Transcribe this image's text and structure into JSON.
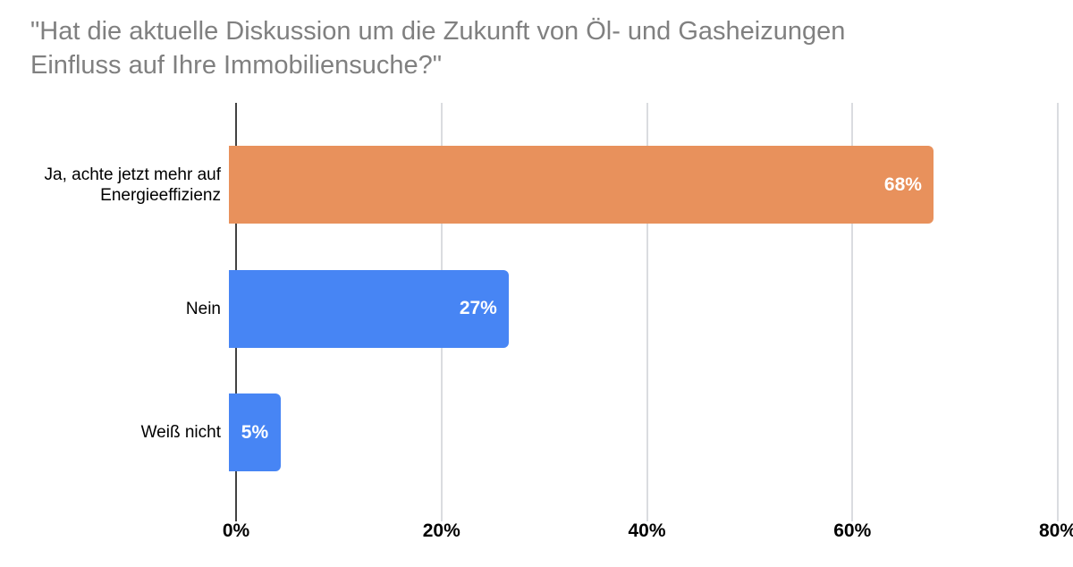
{
  "chart_data": {
    "type": "bar",
    "orientation": "horizontal",
    "title": "\"Hat die aktuelle Diskussion um die Zukunft von Öl- und Gasheizungen Einfluss auf Ihre Immobiliensuche?\"",
    "title_lines": [
      "\"Hat die aktuelle Diskussion um die Zukunft von Öl- und Gasheizungen",
      "Einfluss auf Ihre Immobiliensuche?\""
    ],
    "categories": [
      "Ja, achte jetzt mehr auf Energieeffizienz",
      "Nein",
      "Weiß nicht"
    ],
    "values": [
      68,
      27,
      5
    ],
    "value_labels": [
      "68%",
      "27%",
      "5%"
    ],
    "series_colors": [
      "#E8915C",
      "#4785F4",
      "#4785F4"
    ],
    "xlabel": "",
    "ylabel": "",
    "xlim": [
      0,
      80
    ],
    "x_ticks": [
      "0%",
      "20%",
      "40%",
      "60%",
      "80%"
    ],
    "grid": "vertical",
    "legend": "none"
  },
  "colors": {
    "background": "#FFFFFF",
    "title": "#808080",
    "category_label": "#000000",
    "axis_tick_label": "#000000",
    "value_label": "#FFFFFF",
    "gridline": "#DADCE0",
    "axis_line": "#424242",
    "bar_orange": "#E8915C",
    "bar_blue": "#4785F4"
  }
}
